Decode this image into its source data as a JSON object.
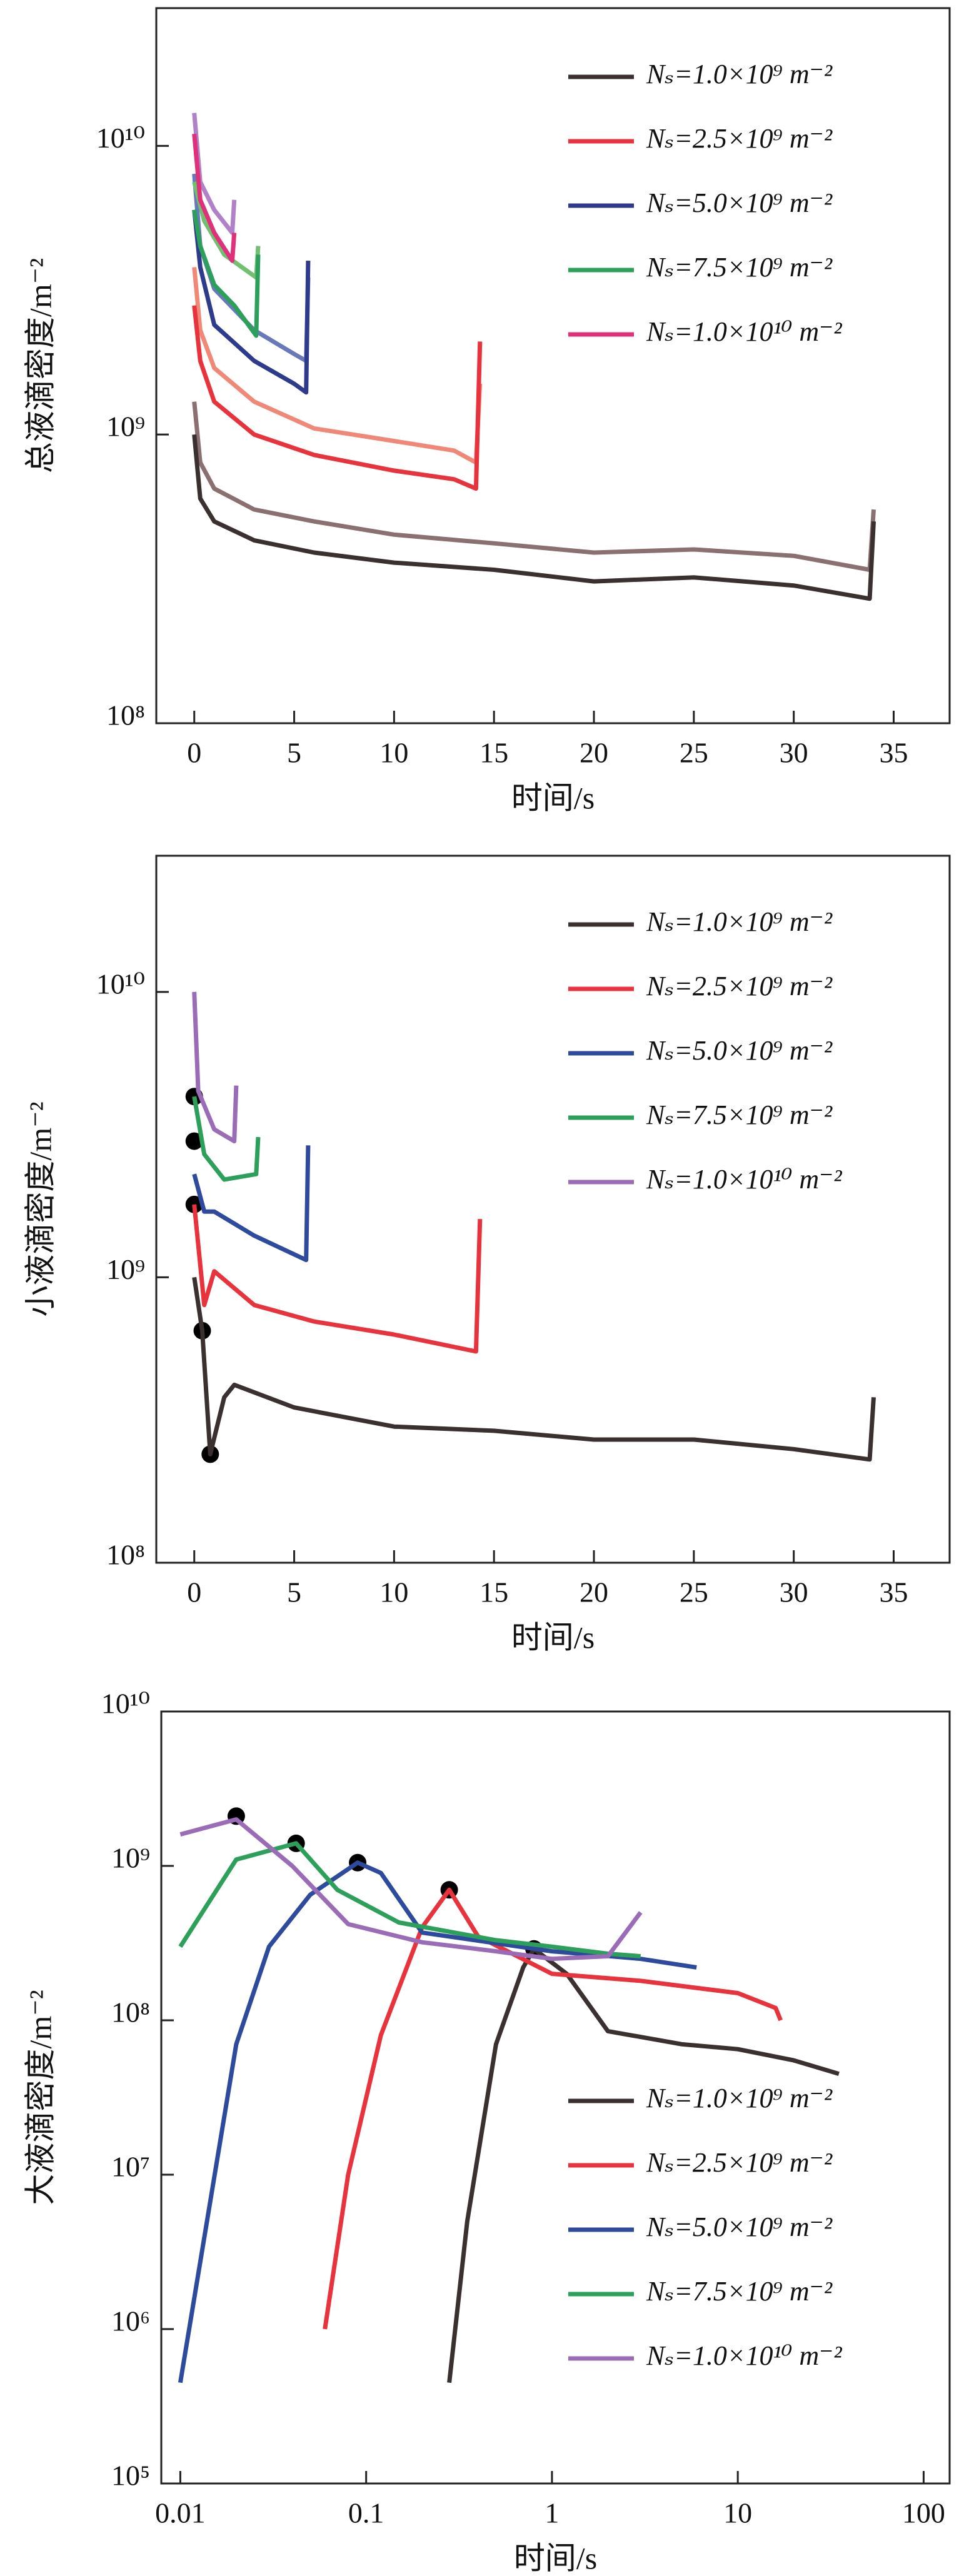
{
  "chart_data": [
    {
      "type": "line",
      "ylabel": "总液滴密度/m⁻²",
      "xlabel": "时间/s",
      "ylog": true,
      "xlog": false,
      "xlim": [
        -1.9,
        37.8
      ],
      "ylim": [
        100000000,
        30000000000
      ],
      "xticks": [
        0,
        5,
        10,
        15,
        20,
        25,
        30,
        35
      ],
      "yticks": [
        {
          "value": 100000000,
          "label": "10⁸"
        },
        {
          "value": 1000000000,
          "label": "10⁹"
        },
        {
          "value": 10000000000,
          "label": "10¹⁰"
        }
      ],
      "legend": "upper right",
      "series": [
        {
          "name": "Nₛ=1.0×10⁹ m⁻²",
          "color": "#3a3030",
          "x": [
            0,
            0.3,
            1,
            3,
            6,
            10,
            15,
            20,
            25,
            30,
            33.8,
            34
          ],
          "values": [
            1000000000,
            600000000,
            500000000,
            430000000,
            390000000,
            360000000,
            340000000,
            310000000,
            320000000,
            300000000,
            270000000,
            500000000
          ]
        },
        {
          "name": "Nₛ=2.5×10⁹ m⁻²",
          "color": "#e8323c",
          "x": [
            0,
            0.3,
            1,
            3,
            6,
            10,
            13,
            14.1,
            14.3
          ],
          "values": [
            2800000000,
            1800000000,
            1300000000,
            1000000000,
            850000000,
            750000000,
            700000000,
            650000000,
            2100000000
          ]
        },
        {
          "name": "Nₛ=5.0×10⁹ m⁻²",
          "color": "#2e3a8c",
          "x": [
            0,
            0.3,
            1,
            3,
            5,
            5.6,
            5.7
          ],
          "values": [
            6000000000,
            3800000000,
            2400000000,
            1800000000,
            1500000000,
            1400000000,
            4000000000
          ]
        },
        {
          "name": "Nₛ=7.5×10⁹ m⁻²",
          "color": "#2ca05a",
          "x": [
            0,
            0.3,
            1,
            2,
            3.1,
            3.2
          ],
          "values": [
            6000000000,
            4500000000,
            3300000000,
            2800000000,
            2200000000,
            4200000000
          ]
        },
        {
          "name": "Nₛ=1.0×10¹⁰ m⁻²",
          "color": "#e0307a",
          "x": [
            0,
            0.3,
            1,
            1.9,
            2
          ],
          "values": [
            11000000000,
            6500000000,
            5000000000,
            4000000000,
            5000000000
          ]
        },
        {
          "color": "#8a7070",
          "x": [
            0,
            0.3,
            1,
            3,
            6,
            10,
            15,
            20,
            25,
            30,
            33.8,
            34
          ],
          "values": [
            1300000000,
            800000000,
            650000000,
            550000000,
            500000000,
            450000000,
            420000000,
            390000000,
            400000000,
            380000000,
            340000000,
            550000000
          ]
        },
        {
          "color": "#f08878",
          "x": [
            0,
            0.3,
            1,
            3,
            6,
            10,
            13,
            14.1,
            14.3
          ],
          "values": [
            3800000000,
            2300000000,
            1700000000,
            1300000000,
            1050000000,
            950000000,
            880000000,
            800000000,
            1500000000
          ]
        },
        {
          "color": "#6878b8",
          "x": [
            0,
            0.3,
            1,
            3,
            5,
            5.6,
            5.7
          ],
          "values": [
            8000000000,
            4500000000,
            3200000000,
            2300000000,
            1900000000,
            1800000000,
            3500000000
          ]
        },
        {
          "color": "#70c070",
          "x": [
            0,
            0.5,
            1.5,
            3.1,
            3.2
          ],
          "values": [
            7500000000,
            5500000000,
            4200000000,
            3500000000,
            4500000000
          ]
        },
        {
          "color": "#b080c8",
          "x": [
            0,
            0.3,
            1,
            1.9,
            2
          ],
          "values": [
            13000000000,
            7500000000,
            6000000000,
            5000000000,
            6500000000
          ]
        }
      ]
    },
    {
      "type": "line",
      "ylabel": "小液滴密度/m⁻²",
      "xlabel": "时间/s",
      "ylog": true,
      "xlog": false,
      "xlim": [
        -1.9,
        37.8
      ],
      "ylim": [
        100000000,
        30000000000
      ],
      "xticks": [
        0,
        5,
        10,
        15,
        20,
        25,
        30,
        35
      ],
      "yticks": [
        {
          "value": 100000000,
          "label": "10⁸"
        },
        {
          "value": 1000000000,
          "label": "10⁹"
        },
        {
          "value": 10000000000,
          "label": "10¹⁰"
        }
      ],
      "legend": "upper right",
      "series": [
        {
          "name": "Nₛ=1.0×10⁹ m⁻²",
          "color": "#3a3030",
          "x": [
            0,
            0.4,
            0.8,
            1.5,
            2,
            5,
            10,
            15,
            20,
            25,
            30,
            33.8,
            34
          ],
          "values": [
            1000000000,
            650000000,
            240000000,
            380000000,
            420000000,
            350000000,
            300000000,
            290000000,
            270000000,
            270000000,
            250000000,
            230000000,
            380000000
          ]
        },
        {
          "name": "Nₛ=2.5×10⁹ m⁻²",
          "color": "#e8323c",
          "x": [
            0,
            0.5,
            1,
            3,
            6,
            10,
            14.1,
            14.3
          ],
          "values": [
            1800000000,
            800000000,
            1050000000,
            800000000,
            700000000,
            630000000,
            550000000,
            1600000000
          ]
        },
        {
          "name": "Nₛ=5.0×10⁹ m⁻²",
          "color": "#2e4a9c",
          "x": [
            0,
            0.5,
            1,
            3,
            5.6,
            5.7
          ],
          "values": [
            2300000000,
            1700000000,
            1700000000,
            1400000000,
            1150000000,
            2900000000
          ]
        },
        {
          "name": "Nₛ=7.5×10⁹ m⁻²",
          "color": "#2ca05a",
          "x": [
            0,
            0.5,
            1.5,
            3.1,
            3.2
          ],
          "values": [
            4300000000,
            2700000000,
            2200000000,
            2300000000,
            3100000000
          ]
        },
        {
          "name": "Nₛ=1.0×10¹⁰ m⁻²",
          "color": "#9a6cb8",
          "x": [
            0,
            0.2,
            1,
            2,
            2.1
          ],
          "values": [
            10000000000,
            4500000000,
            3300000000,
            3000000000,
            4700000000
          ]
        },
        {
          "color": "#000000",
          "markers": true,
          "x": [
            0,
            0,
            0,
            0.4,
            0.8
          ],
          "values": [
            4300000000,
            3000000000,
            1800000000,
            650000000,
            240000000
          ]
        }
      ]
    },
    {
      "type": "line",
      "ylabel": "大液滴密度/m⁻²",
      "xlabel": "时间/s",
      "ylog": true,
      "xlog": true,
      "xlim": [
        0.0079,
        138
      ],
      "ylim": [
        100000,
        10000000000
      ],
      "xticks": [
        0.01,
        0.1,
        1,
        10,
        100
      ],
      "yticks": [
        {
          "value": 100000,
          "label": "10⁵"
        },
        {
          "value": 1000000,
          "label": "10⁶"
        },
        {
          "value": 10000000,
          "label": "10⁷"
        },
        {
          "value": 100000000,
          "label": "10⁸"
        },
        {
          "value": 1000000000,
          "label": "10⁹"
        },
        {
          "value": 10000000000,
          "label": "10¹⁰"
        }
      ],
      "legend": "lower right",
      "series": [
        {
          "name": "Nₛ=1.0×10⁹ m⁻²",
          "color": "#3a3030",
          "x": [
            0.28,
            0.35,
            0.5,
            0.7,
            0.8,
            1.2,
            2,
            5,
            10,
            20,
            35
          ],
          "values": [
            450000,
            5000000,
            70000000,
            220000000,
            290000000,
            200000000,
            85000000,
            70000000,
            65000000,
            55000000,
            45000000
          ]
        },
        {
          "name": "Nₛ=2.5×10⁹ m⁻²",
          "color": "#e8323c",
          "x": [
            0.06,
            0.08,
            0.12,
            0.2,
            0.28,
            0.4,
            1,
            3,
            10,
            16,
            17
          ],
          "values": [
            1000000,
            10000000,
            80000000,
            400000000,
            700000000,
            350000000,
            200000000,
            180000000,
            150000000,
            120000000,
            100000000
          ]
        },
        {
          "name": "Nₛ=5.0×10⁹ m⁻²",
          "color": "#2e4a9c",
          "x": [
            0.01,
            0.02,
            0.03,
            0.05,
            0.09,
            0.12,
            0.2,
            1,
            3,
            6
          ],
          "values": [
            450000,
            70000000,
            300000000,
            650000000,
            1050000000,
            900000000,
            370000000,
            280000000,
            250000000,
            220000000
          ]
        },
        {
          "name": "Nₛ=7.5×10⁹ m⁻²",
          "color": "#2ca05a",
          "x": [
            0.01,
            0.02,
            0.042,
            0.07,
            0.15,
            0.5,
            1,
            2,
            3
          ],
          "values": [
            300000000,
            1100000000,
            1400000000,
            700000000,
            430000000,
            330000000,
            300000000,
            270000000,
            260000000
          ]
        },
        {
          "name": "Nₛ=1.0×10¹⁰ m⁻²",
          "color": "#9a6cb8",
          "x": [
            0.01,
            0.02,
            0.04,
            0.08,
            0.2,
            0.5,
            1,
            2,
            3
          ],
          "values": [
            1600000000,
            2000000000,
            1000000000,
            420000000,
            320000000,
            280000000,
            250000000,
            260000000,
            500000000
          ]
        },
        {
          "color": "#000000",
          "markers": true,
          "x": [
            0.02,
            0.042,
            0.09,
            0.28,
            0.8
          ],
          "values": [
            2100000000,
            1400000000,
            1050000000,
            700000000,
            290000000
          ]
        }
      ]
    }
  ]
}
